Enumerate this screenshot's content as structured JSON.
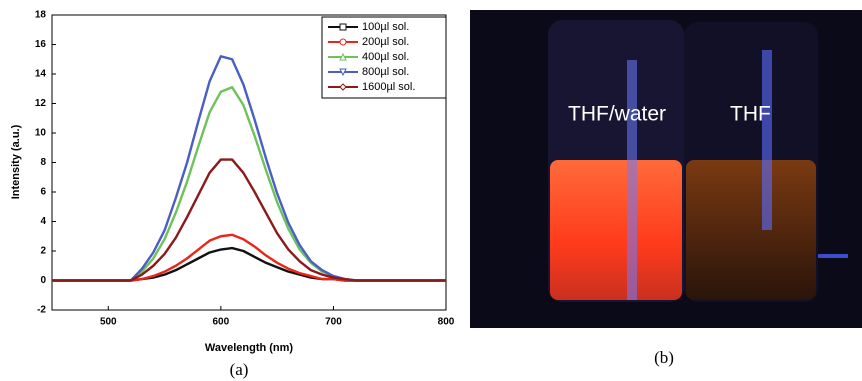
{
  "chart_data": {
    "type": "line",
    "xlabel": "Wavelength (nm)",
    "ylabel": "Intensity (a.u.)",
    "x": [
      450,
      520,
      530,
      540,
      550,
      560,
      570,
      580,
      590,
      600,
      610,
      620,
      630,
      640,
      650,
      660,
      670,
      680,
      690,
      700,
      710,
      720,
      800
    ],
    "series": [
      {
        "name": "100µl sol.",
        "color": "#111111",
        "marker": "square",
        "values": [
          0,
          0,
          0.1,
          0.2,
          0.4,
          0.7,
          1.1,
          1.5,
          1.9,
          2.1,
          2.2,
          2.0,
          1.6,
          1.2,
          0.9,
          0.6,
          0.4,
          0.2,
          0.1,
          0.1,
          0,
          0,
          0
        ]
      },
      {
        "name": "200µl sol.",
        "color": "#e8261c",
        "marker": "circle",
        "values": [
          0,
          0,
          0.1,
          0.3,
          0.6,
          1.0,
          1.5,
          2.1,
          2.7,
          3.0,
          3.1,
          2.8,
          2.3,
          1.7,
          1.2,
          0.8,
          0.5,
          0.3,
          0.1,
          0.1,
          0,
          0,
          0
        ]
      },
      {
        "name": "400µl sol.",
        "color": "#6dc25a",
        "marker": "triangle",
        "values": [
          0,
          0,
          0.6,
          1.5,
          2.8,
          4.6,
          6.7,
          9.1,
          11.4,
          12.8,
          13.1,
          11.9,
          9.8,
          7.5,
          5.3,
          3.5,
          2.1,
          1.2,
          0.6,
          0.3,
          0.1,
          0,
          0
        ]
      },
      {
        "name": "800µl sol.",
        "color": "#4a5fc4",
        "marker": "triangle-down",
        "values": [
          0,
          0,
          0.8,
          1.9,
          3.4,
          5.6,
          8.0,
          10.8,
          13.5,
          15.2,
          15.0,
          13.3,
          10.9,
          8.3,
          5.9,
          3.9,
          2.4,
          1.3,
          0.7,
          0.3,
          0.1,
          0,
          0
        ]
      },
      {
        "name": "1600µl sol.",
        "color": "#8b1a1a",
        "marker": "diamond",
        "values": [
          0,
          0,
          0.4,
          1.0,
          1.8,
          2.9,
          4.3,
          5.8,
          7.3,
          8.2,
          8.2,
          7.3,
          6.0,
          4.6,
          3.2,
          2.1,
          1.3,
          0.7,
          0.4,
          0.2,
          0.1,
          0,
          0
        ]
      }
    ],
    "xlim": [
      450,
      800
    ],
    "xticks": [
      500,
      600,
      700,
      800
    ],
    "ylim": [
      -2,
      18
    ],
    "yticks": [
      -2,
      0,
      2,
      4,
      6,
      8,
      10,
      12,
      14,
      16,
      18
    ],
    "legend": "upper-right",
    "grid": false
  },
  "captions": {
    "a": "(a)",
    "b": "(b)"
  },
  "photo": {
    "label_left": "THF/water",
    "label_right": "THF"
  }
}
